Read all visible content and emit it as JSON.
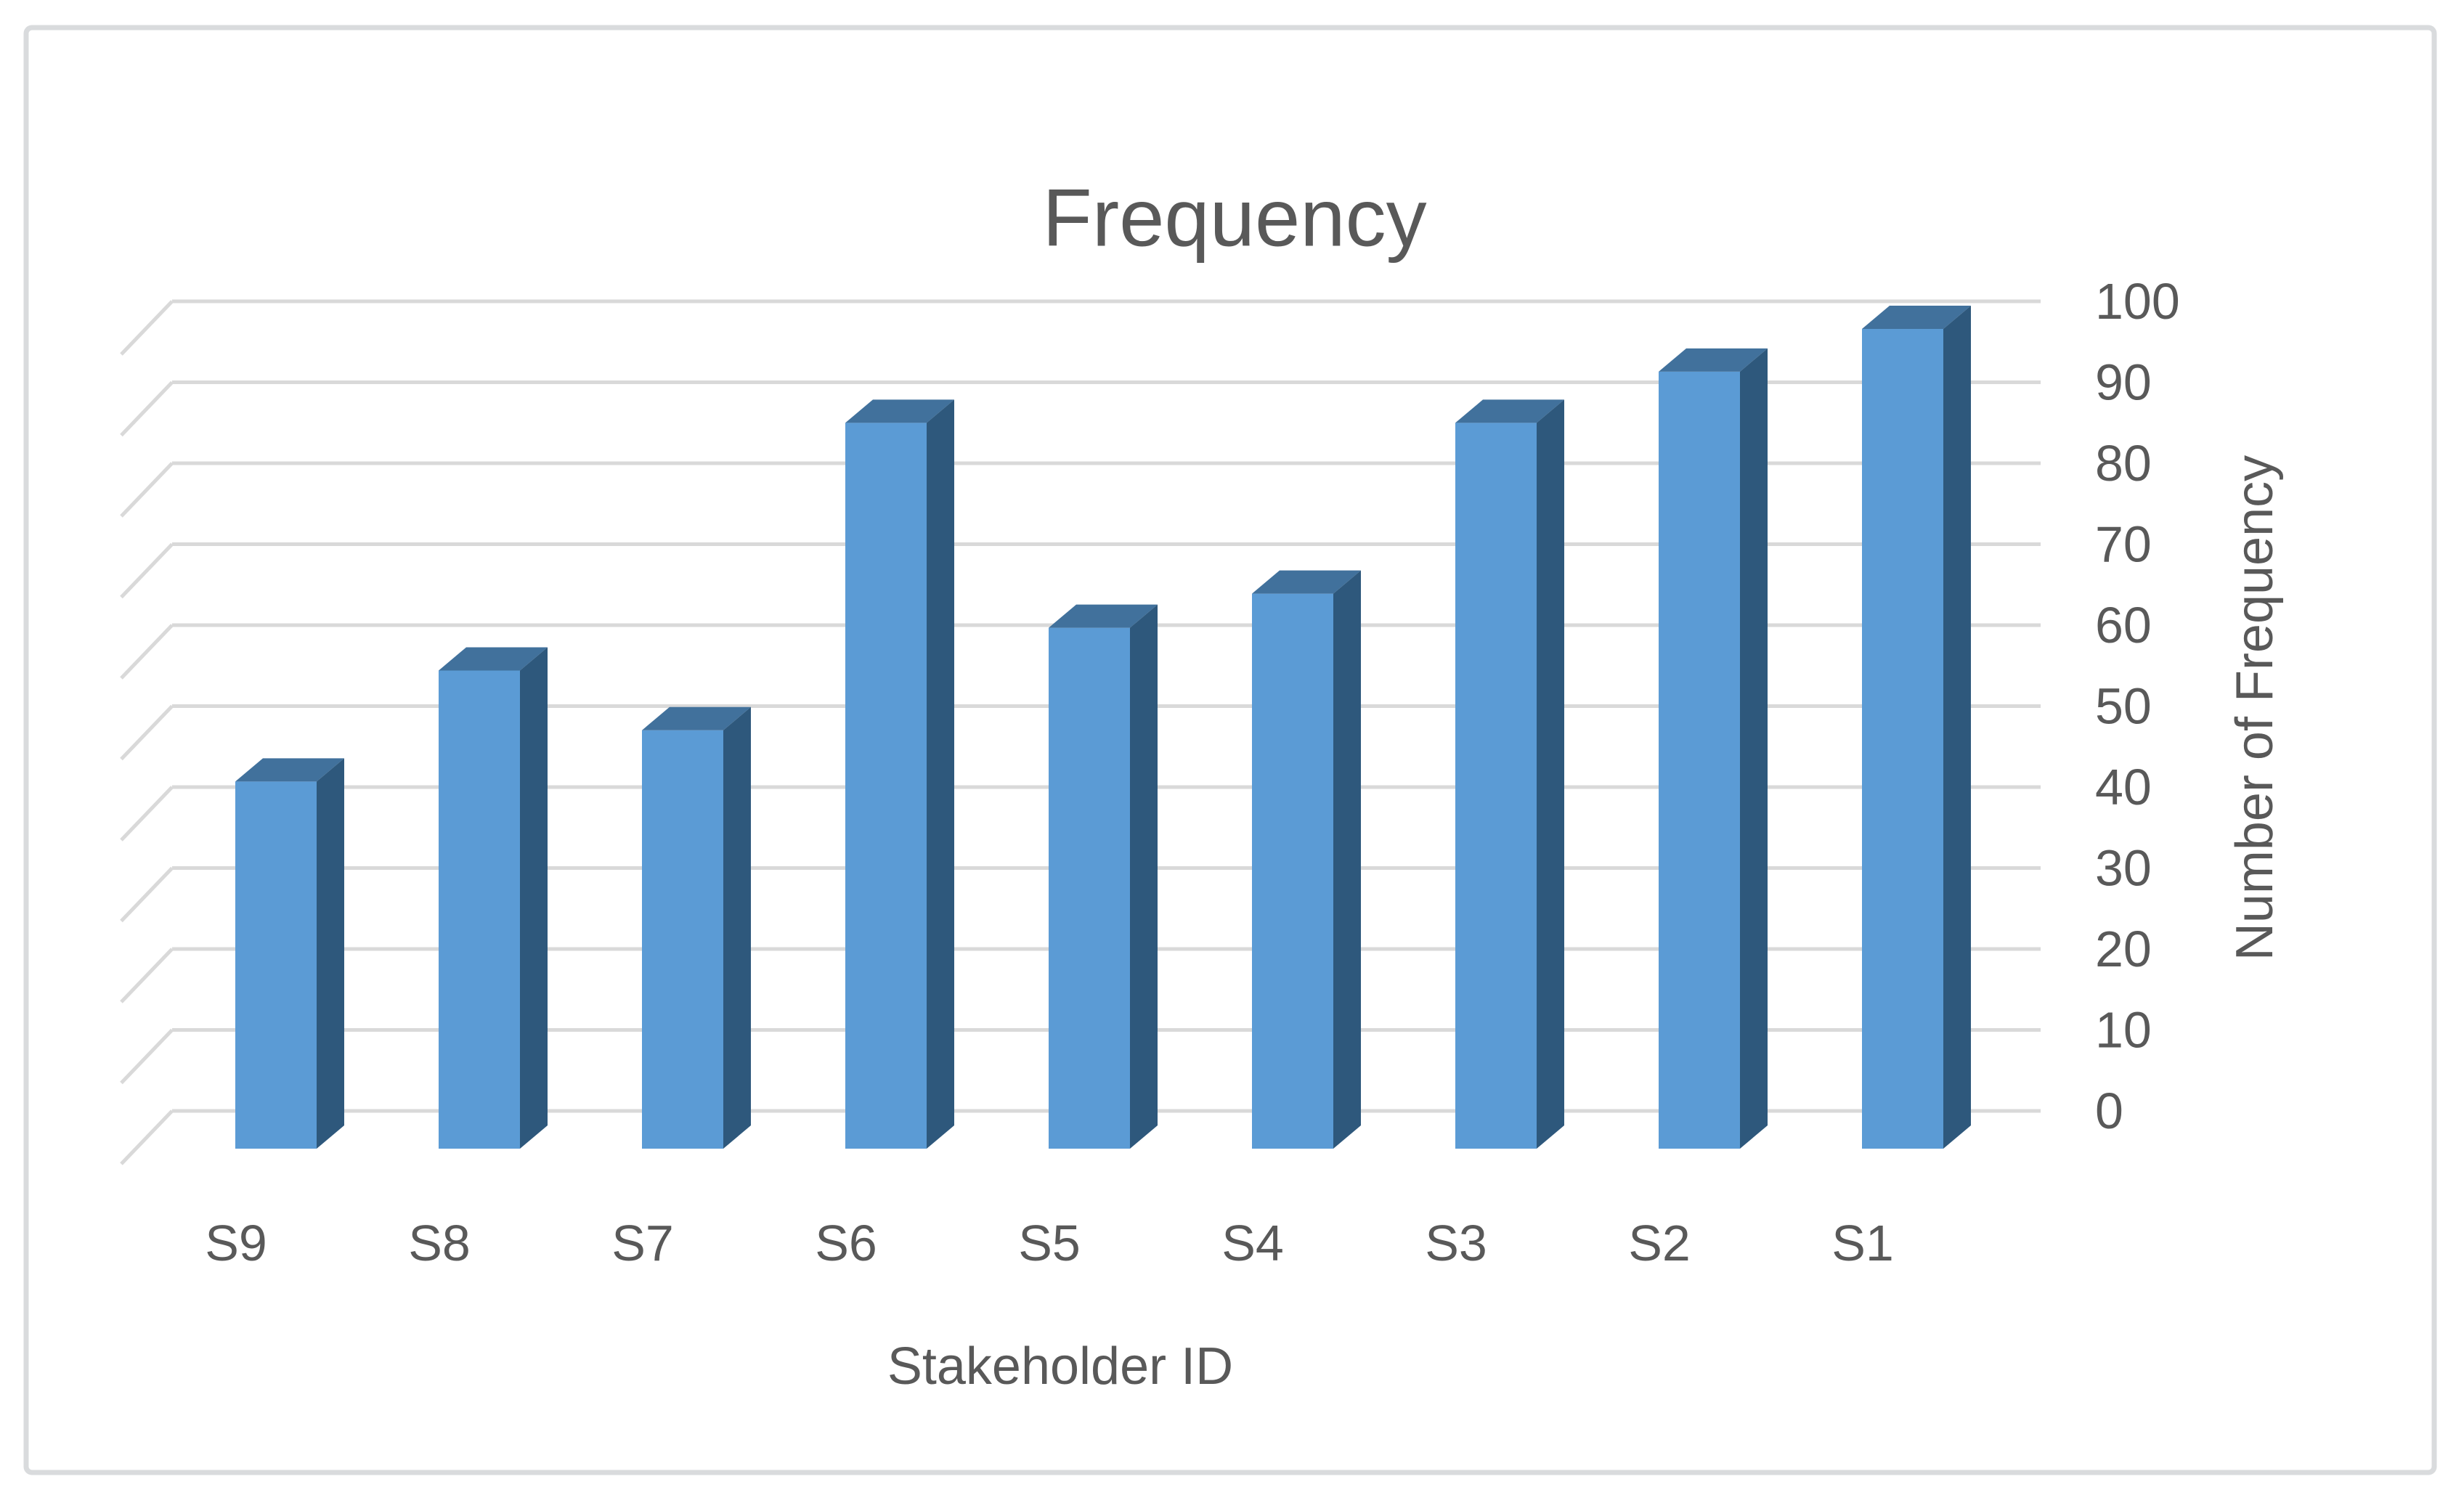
{
  "chart_data": {
    "type": "bar",
    "style": "3d-column",
    "title": "Frequency",
    "xlabel": "Stakeholder ID",
    "ylabel": "Number of Frequency",
    "categories": [
      "S9",
      "S8",
      "S7",
      "S6",
      "S5",
      "S4",
      "S3",
      "S2",
      "S1"
    ],
    "values": [
      43,
      56,
      49,
      85,
      61,
      65,
      85,
      91,
      96
    ],
    "ylim": [
      0,
      100
    ],
    "ytick_step": 10,
    "ytick_labels": [
      "0",
      "10",
      "20",
      "30",
      "40",
      "50",
      "60",
      "70",
      "80",
      "90",
      "100"
    ],
    "y_axis_side": "right",
    "legend": "none",
    "grid": "horizontal-3d",
    "colors": {
      "bar_front": "#5B9BD5",
      "bar_top": "#41719C",
      "bar_side": "#2E587C",
      "gridline": "#D9D9D9",
      "text": "#595959",
      "frame": "#D9DBDD",
      "background": "#FFFFFF"
    }
  }
}
